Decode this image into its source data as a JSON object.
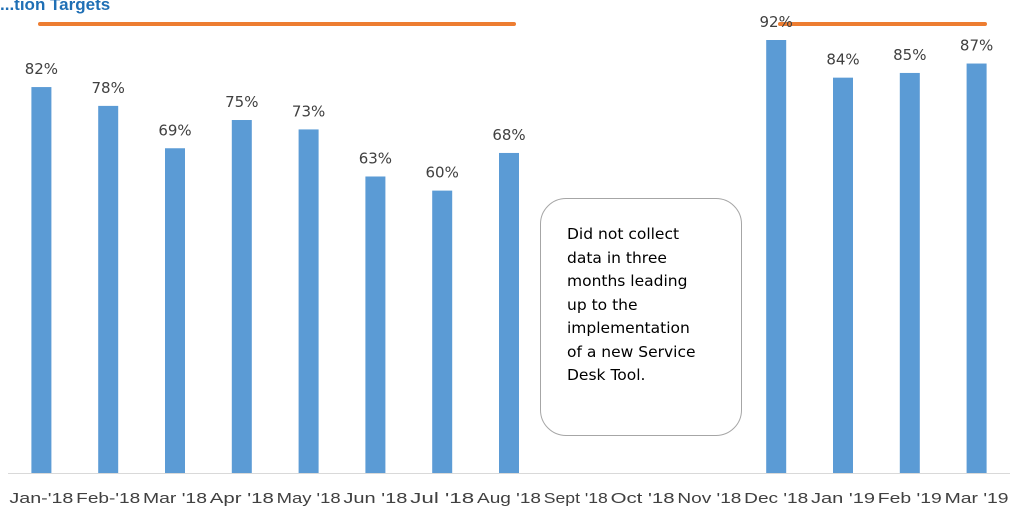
{
  "header": {
    "title": "...tion Targets",
    "line_color": "#ed7d31"
  },
  "annotation": {
    "lines": [
      "Did not collect",
      "data in three",
      "months leading",
      "up to the",
      "implementation",
      "of a new Service",
      "Desk Tool."
    ]
  },
  "chart_data": {
    "type": "bar",
    "categories": [
      "Jan-'18",
      "Feb-'18",
      "Mar '18",
      "Apr '18",
      "May '18",
      "Jun '18",
      "Jul '18",
      "Aug '18",
      "Sept '18",
      "Oct '18",
      "Nov '18",
      "Dec '18",
      "Jan '19",
      "Feb '19",
      "Mar '19"
    ],
    "values": [
      82,
      78,
      69,
      75,
      73,
      63,
      60,
      68,
      null,
      null,
      null,
      92,
      84,
      85,
      87
    ],
    "data_labels": [
      "82%",
      "78%",
      "69%",
      "75%",
      "73%",
      "63%",
      "60%",
      "68%",
      "",
      "",
      "",
      "92%",
      "84%",
      "85%",
      "87%"
    ],
    "bar_color": "#5b9bd5",
    "axis_color": "#d9d9d9",
    "title": "",
    "xlabel": "",
    "ylabel": "",
    "ylim": [
      0,
      100
    ],
    "grid": false,
    "legend": "none"
  }
}
